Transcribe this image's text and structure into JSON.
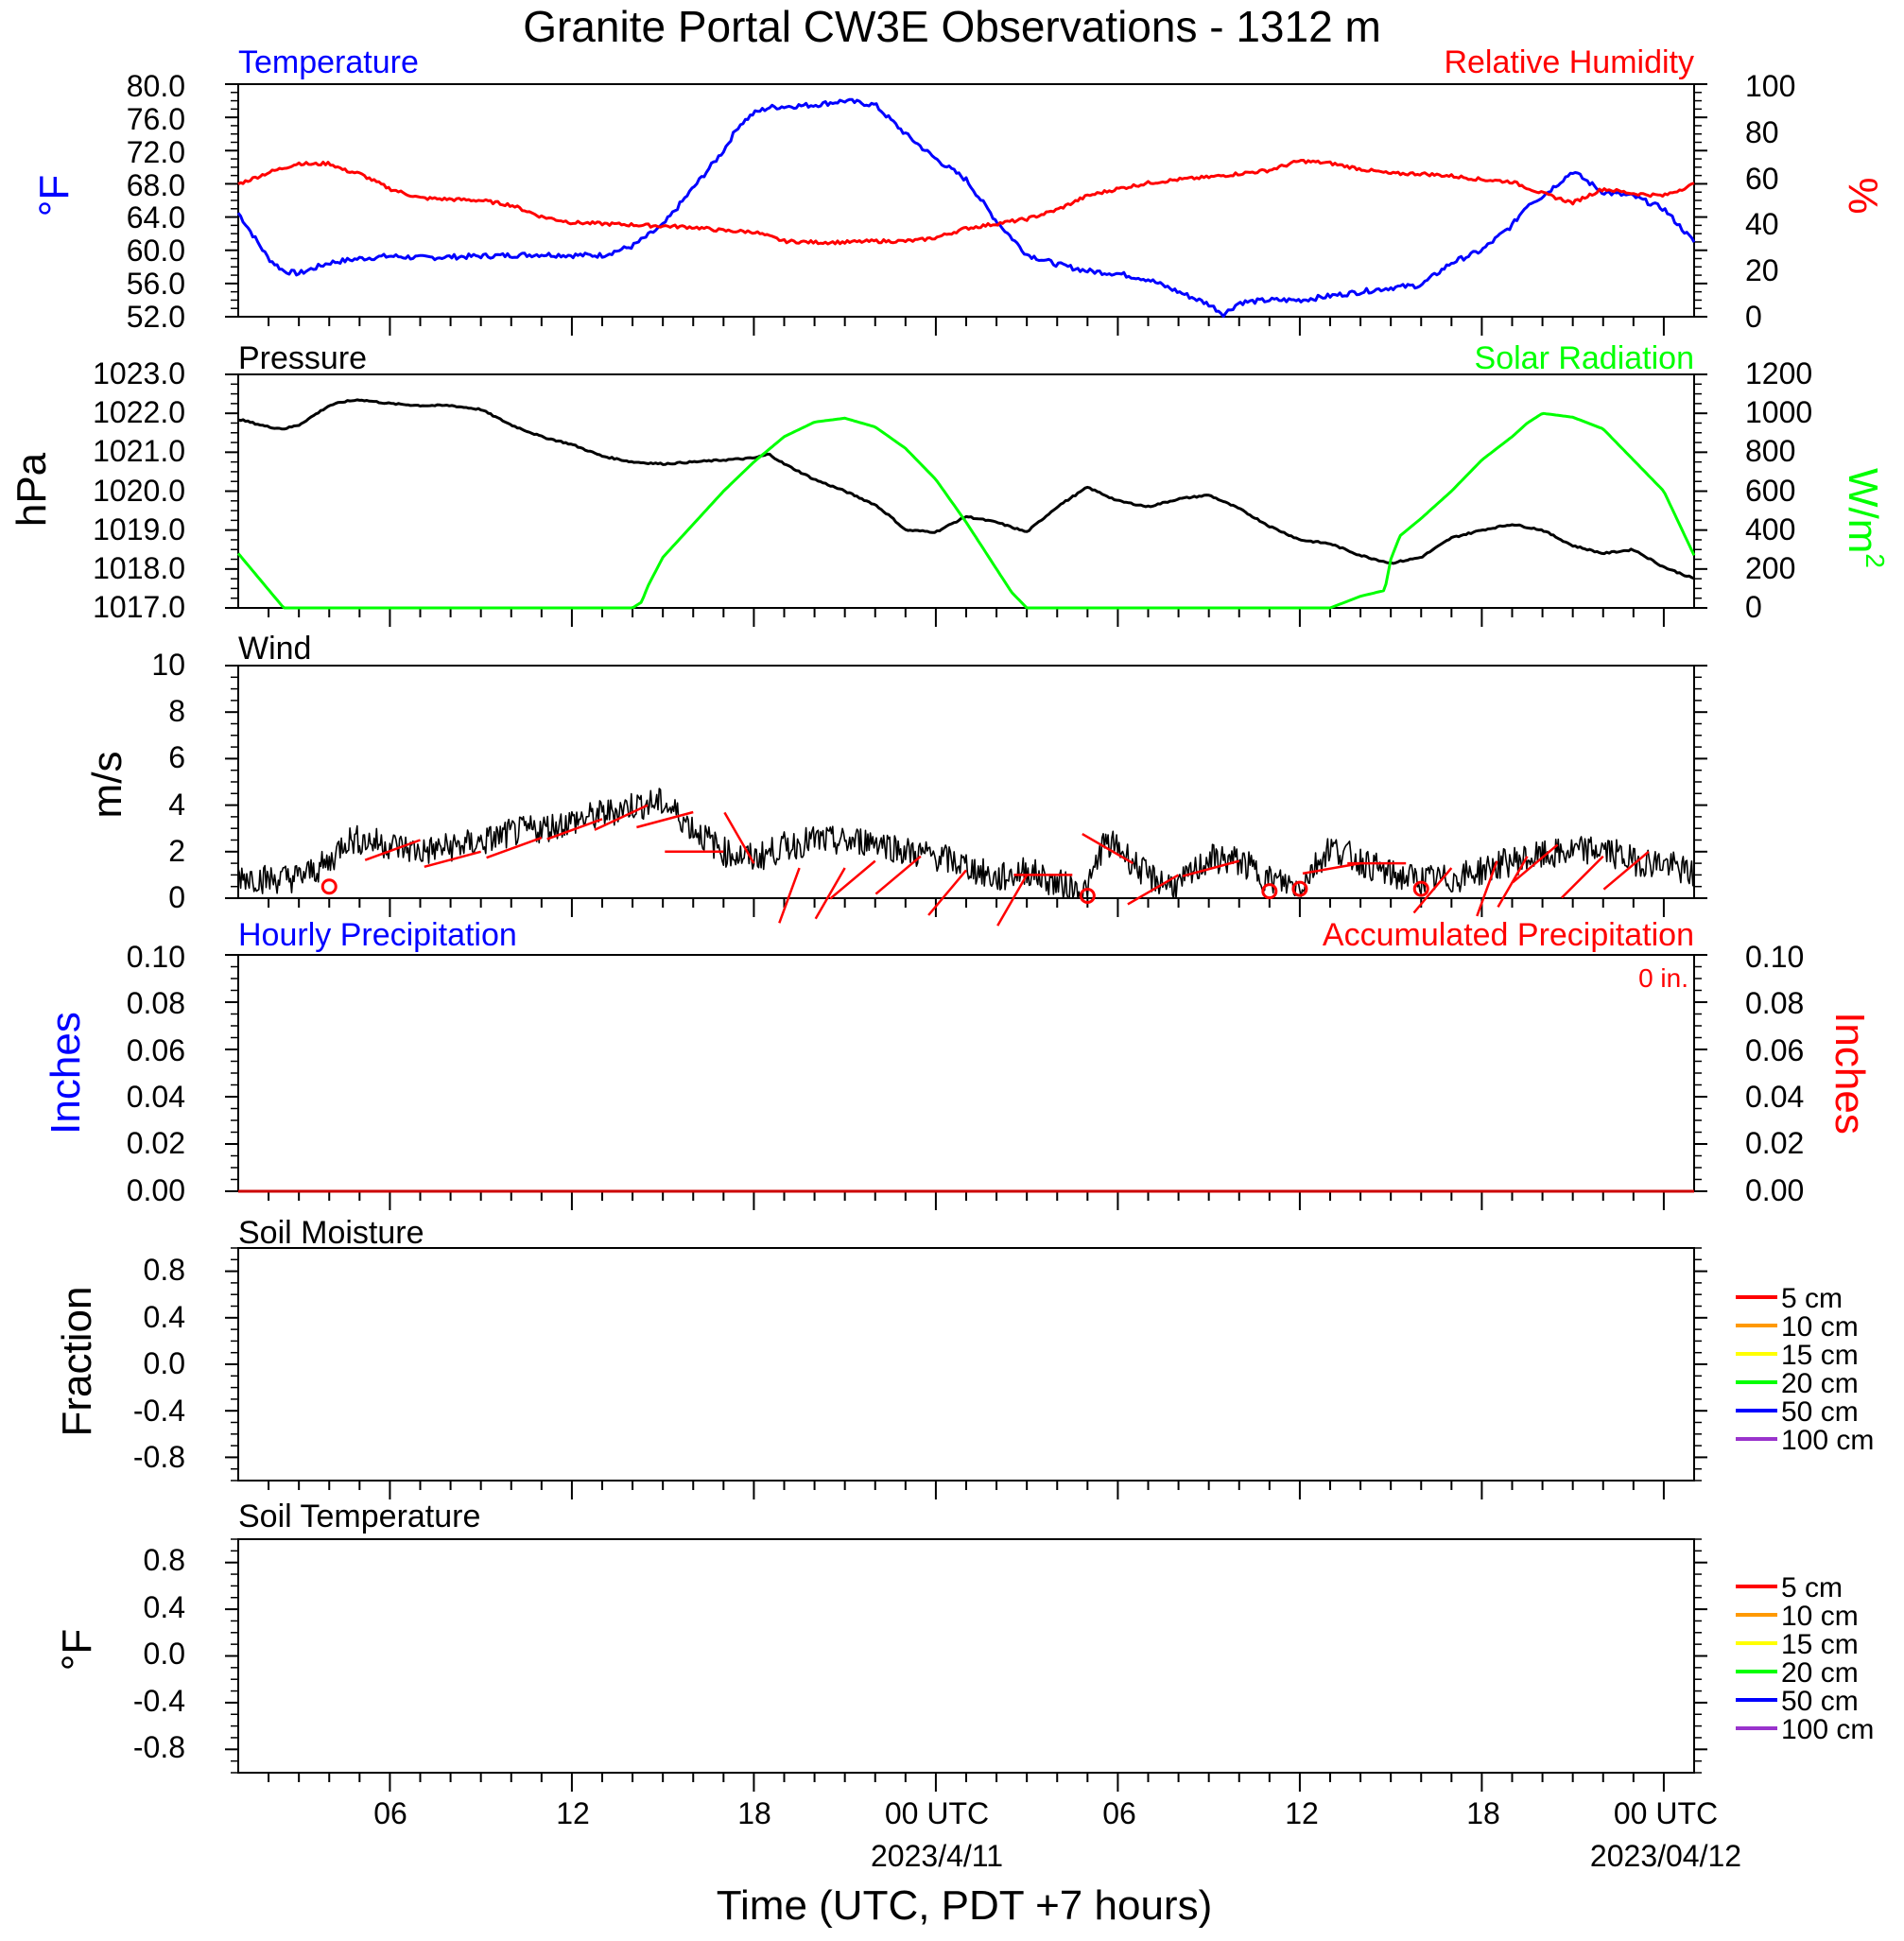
{
  "title": "Granite Portal CW3E Observations - 1312 m",
  "xlabel": "Time (UTC, PDT +7 hours)",
  "x_axis": {
    "range_hours": [
      0,
      48
    ],
    "ticks": [
      {
        "h": 5,
        "label": "06"
      },
      {
        "h": 11,
        "label": "12"
      },
      {
        "h": 17,
        "label": "18"
      },
      {
        "h": 23,
        "label": "00 UTC",
        "sublabel": "2023/4/11"
      },
      {
        "h": 29,
        "label": "06"
      },
      {
        "h": 35,
        "label": "12"
      },
      {
        "h": 41,
        "label": "18"
      },
      {
        "h": 47,
        "label": "00 UTC",
        "sublabel": "2023/04/12"
      }
    ]
  },
  "colors": {
    "temperature": "#0000ff",
    "humidity": "#ff0000",
    "pressure": "#000000",
    "solar": "#00ff00",
    "wind": "#000000",
    "barb": "#ff0000",
    "hourly_precip": "#0000ff",
    "accum_precip": "#cc0000"
  },
  "chart_data": [
    {
      "type": "line",
      "panel": "temperature-humidity",
      "left_title": "Temperature",
      "right_title": "Relative Humidity",
      "ylabel_left": "°F",
      "ylabel_right": "%",
      "ylim_left": [
        52,
        80
      ],
      "ylim_right": [
        0,
        100
      ],
      "yticks_left": [
        "80.0",
        "76.0",
        "72.0",
        "68.0",
        "64.0",
        "60.0",
        "56.0",
        "52.0"
      ],
      "yticks_right": [
        "100",
        "80",
        "60",
        "40",
        "20",
        "0"
      ],
      "series": [
        {
          "name": "Temperature",
          "axis": "left",
          "x": [
            0,
            1,
            1.5,
            2,
            3,
            4,
            5,
            6,
            7,
            8,
            9,
            10,
            11,
            12,
            13,
            14,
            15,
            16,
            16.5,
            17,
            17.5,
            18,
            19,
            20,
            21,
            22,
            22.5,
            23,
            24,
            25,
            26,
            27,
            28,
            29,
            30,
            31,
            32,
            32.5,
            33,
            34,
            35,
            36,
            37,
            38,
            39,
            40,
            41,
            42,
            42.5,
            43,
            44,
            45,
            46,
            47,
            48
          ],
          "y": [
            64.5,
            59,
            57.5,
            57.2,
            58.5,
            59,
            59.3,
            59.1,
            59.2,
            59.3,
            59.4,
            59.5,
            59.4,
            59.4,
            60.5,
            63,
            67.5,
            72,
            75,
            76.5,
            77.2,
            77.3,
            77.5,
            78,
            77.5,
            74,
            72.5,
            71,
            68.5,
            63.5,
            59.5,
            58.3,
            57.5,
            57.2,
            56.5,
            55,
            53.5,
            52.3,
            53.7,
            54,
            54,
            54.5,
            55,
            55.5,
            55.8,
            58.5,
            60,
            63,
            65.5,
            66.5,
            69.5,
            67,
            66.5,
            65,
            61
          ]
        },
        {
          "name": "Relative Humidity",
          "axis": "right",
          "x": [
            0,
            1,
            2,
            2.5,
            3,
            3.5,
            4,
            5,
            6,
            7,
            8,
            9,
            10,
            11,
            12,
            13,
            14,
            15,
            16,
            17,
            18,
            19,
            20,
            21,
            22,
            22.5,
            23,
            24,
            25,
            26,
            27,
            28,
            29,
            30,
            31,
            32,
            33,
            34,
            35,
            36,
            37,
            38,
            39,
            40,
            41,
            42,
            43,
            44,
            45,
            46,
            47,
            48
          ],
          "y": [
            57,
            62,
            66,
            65.5,
            66,
            63,
            61.5,
            55,
            51,
            50.5,
            50,
            48,
            43,
            40.5,
            40,
            39.5,
            39,
            38.5,
            37,
            36.5,
            32.5,
            32,
            32,
            32.5,
            32.5,
            33,
            34,
            38,
            40,
            42,
            46,
            52,
            55,
            57.5,
            59,
            60,
            61.5,
            63,
            67,
            66,
            63.5,
            61.5,
            61.5,
            60.5,
            59,
            58,
            53,
            49,
            55,
            53,
            52,
            57
          ]
        }
      ]
    },
    {
      "type": "line",
      "panel": "pressure-solar",
      "left_title": "Pressure",
      "right_title": "Solar Radiation",
      "ylabel_left": "hPa",
      "ylabel_right": "W/m",
      "ylabel_right_sup": "2",
      "ylim_left": [
        1017,
        1023
      ],
      "ylim_right": [
        0,
        1200
      ],
      "yticks_left": [
        "1023.0",
        "1022.0",
        "1021.0",
        "1020.0",
        "1019.0",
        "1018.0",
        "1017.0"
      ],
      "yticks_right": [
        "1200",
        "1000",
        "800",
        "600",
        "400",
        "200",
        "0"
      ],
      "series": [
        {
          "name": "Pressure",
          "axis": "left",
          "x": [
            0,
            1,
            1.5,
            2,
            3,
            3.5,
            4,
            5,
            6,
            7,
            8,
            9,
            10,
            11,
            12,
            13,
            14,
            15,
            16,
            17,
            17.5,
            18,
            19,
            20,
            21,
            21.5,
            22,
            23,
            24,
            25,
            26,
            27,
            28,
            29,
            30,
            31,
            32,
            33,
            34,
            35,
            36,
            37,
            38,
            39,
            40,
            41,
            42,
            43,
            44,
            45,
            46,
            47,
            48
          ],
          "y": [
            1021.85,
            1021.65,
            1021.6,
            1021.7,
            1022.2,
            1022.3,
            1022.35,
            1022.25,
            1022.2,
            1022.2,
            1022.1,
            1021.7,
            1021.4,
            1021.2,
            1020.9,
            1020.75,
            1020.7,
            1020.75,
            1020.8,
            1020.85,
            1020.95,
            1020.7,
            1020.3,
            1020.0,
            1019.65,
            1019.35,
            1019.0,
            1018.95,
            1019.35,
            1019.2,
            1018.95,
            1019.6,
            1020.1,
            1019.75,
            1019.6,
            1019.8,
            1019.9,
            1019.55,
            1019.1,
            1018.75,
            1018.65,
            1018.35,
            1018.15,
            1018.3,
            1018.8,
            1019.0,
            1019.15,
            1019.0,
            1018.6,
            1018.4,
            1018.5,
            1018.05,
            1017.75
          ]
        },
        {
          "name": "Solar Radiation",
          "axis": "right",
          "x": [
            0,
            1.5,
            13,
            13.3,
            13.5,
            14,
            15,
            16,
            17,
            18,
            19,
            20,
            21,
            22,
            23,
            24,
            25,
            25.5,
            26,
            36,
            37,
            37.8,
            38,
            38.3,
            39,
            40,
            41,
            42,
            42.5,
            43,
            44,
            45,
            46,
            47,
            48
          ],
          "y": [
            280,
            0,
            0,
            30,
            110,
            260,
            430,
            600,
            750,
            880,
            955,
            975,
            930,
            820,
            660,
            440,
            200,
            80,
            0,
            0,
            60,
            90,
            250,
            370,
            460,
            600,
            760,
            880,
            950,
            1000,
            980,
            920,
            760,
            600,
            270
          ]
        }
      ]
    },
    {
      "type": "line",
      "panel": "wind",
      "left_title": "Wind",
      "ylabel_left": "m/s",
      "ylim_left": [
        0,
        10
      ],
      "yticks_left": [
        "10",
        "8",
        "6",
        "4",
        "2",
        "0"
      ],
      "series": [
        {
          "name": "Wind",
          "axis": "left",
          "x": [
            0,
            1,
            2,
            3,
            3.5,
            4,
            5,
            6,
            7,
            8,
            9,
            10,
            11,
            12,
            13,
            14,
            14.5,
            15,
            16,
            17,
            18,
            19,
            20,
            21,
            22,
            23,
            24,
            25,
            26,
            27,
            28,
            28.5,
            29,
            30,
            31,
            32,
            33,
            34,
            35,
            35.5,
            36,
            37,
            38,
            39,
            40,
            41,
            42,
            43,
            44,
            45,
            46,
            47,
            48
          ],
          "y": [
            1.0,
            0.8,
            0.9,
            1.5,
            2.5,
            2.5,
            2.3,
            2.0,
            2.2,
            2.4,
            2.8,
            3.0,
            3.3,
            3.6,
            4.0,
            4.1,
            3.6,
            3.0,
            2.0,
            1.7,
            2.2,
            2.5,
            2.4,
            2.5,
            2.0,
            1.8,
            1.4,
            0.8,
            1.2,
            0.6,
            0.3,
            2.3,
            2.2,
            0.9,
            0.5,
            1.7,
            1.6,
            0.8,
            0.5,
            1.4,
            2.2,
            1.6,
            1.0,
            0.8,
            0.8,
            1.2,
            1.6,
            1.8,
            2.0,
            2.1,
            1.6,
            1.5,
            1.0
          ]
        }
      ],
      "barbs": [
        {
          "h": 3.0,
          "v": 0.5,
          "calm": true
        },
        {
          "h": 6.0,
          "v": 2.5,
          "dir": 250
        },
        {
          "h": 8.0,
          "v": 2.0,
          "dir": 255
        },
        {
          "h": 10.0,
          "v": 2.6,
          "dir": 250
        },
        {
          "h": 12.0,
          "v": 3.4,
          "dir": 250
        },
        {
          "h": 13.5,
          "v": 4.0,
          "dir": 245
        },
        {
          "h": 15.0,
          "v": 3.7,
          "dir": 255
        },
        {
          "h": 16.0,
          "v": 2.0,
          "dir": 270
        },
        {
          "h": 17.0,
          "v": 1.5,
          "dir": 330
        },
        {
          "h": 18.5,
          "v": 1.3,
          "dir": 200
        },
        {
          "h": 20.0,
          "v": 1.3,
          "dir": 210
        },
        {
          "h": 21.0,
          "v": 1.6,
          "dir": 230
        },
        {
          "h": 22.5,
          "v": 1.8,
          "dir": 230
        },
        {
          "h": 24.0,
          "v": 1.2,
          "dir": 220
        },
        {
          "h": 26.0,
          "v": 1.0,
          "dir": 210
        },
        {
          "h": 27.5,
          "v": 1.0,
          "dir": 270
        },
        {
          "h": 28.0,
          "v": 0.1,
          "calm": true
        },
        {
          "h": 29.5,
          "v": 1.5,
          "dir": 300
        },
        {
          "h": 31.0,
          "v": 1.0,
          "dir": 240
        },
        {
          "h": 33.0,
          "v": 1.6,
          "dir": 255
        },
        {
          "h": 34.0,
          "v": 0.3,
          "calm": true
        },
        {
          "h": 35.0,
          "v": 0.4,
          "calm": true
        },
        {
          "h": 37.0,
          "v": 1.5,
          "dir": 260
        },
        {
          "h": 38.5,
          "v": 1.5,
          "dir": 270
        },
        {
          "h": 39.0,
          "v": 0.4,
          "calm": true
        },
        {
          "h": 40.0,
          "v": 1.3,
          "dir": 220
        },
        {
          "h": 41.5,
          "v": 1.6,
          "dir": 200
        },
        {
          "h": 42.5,
          "v": 1.8,
          "dir": 210
        },
        {
          "h": 43.5,
          "v": 2.3,
          "dir": 230
        },
        {
          "h": 45.0,
          "v": 1.8,
          "dir": 225
        },
        {
          "h": 46.5,
          "v": 2.0,
          "dir": 230
        }
      ]
    },
    {
      "type": "line",
      "panel": "precipitation",
      "left_title": "Hourly Precipitation",
      "right_title": "Accumulated Precipitation",
      "accumulated_total": "0 in.",
      "ylabel_left": "Inches",
      "ylabel_right": "Inches",
      "ylim_left": [
        0,
        0.1
      ],
      "ylim_right": [
        0,
        0.1
      ],
      "yticks_left": [
        "0.10",
        "0.08",
        "0.06",
        "0.04",
        "0.02",
        "0.00"
      ],
      "yticks_right": [
        "0.10",
        "0.08",
        "0.06",
        "0.04",
        "0.02",
        "0.00"
      ],
      "series": [
        {
          "name": "Hourly Precipitation",
          "axis": "left",
          "x": [
            0,
            48
          ],
          "y": [
            0,
            0
          ]
        },
        {
          "name": "Accumulated Precipitation",
          "axis": "right",
          "x": [
            0,
            48
          ],
          "y": [
            0,
            0
          ]
        }
      ]
    },
    {
      "type": "line",
      "panel": "soil-moisture",
      "left_title": "Soil Moisture",
      "ylabel_left": "Fraction",
      "ylim_left": [
        -1,
        1
      ],
      "yticks_left": [
        "0.8",
        "0.4",
        "0.0",
        "-0.4",
        "-0.8"
      ],
      "legend": [
        {
          "label": "5 cm",
          "color": "#ff0000"
        },
        {
          "label": "10 cm",
          "color": "#ff9900"
        },
        {
          "label": "15 cm",
          "color": "#ffff00"
        },
        {
          "label": "20 cm",
          "color": "#00ff00"
        },
        {
          "label": "50 cm",
          "color": "#0000ff"
        },
        {
          "label": "100 cm",
          "color": "#9933cc"
        }
      ],
      "series": []
    },
    {
      "type": "line",
      "panel": "soil-temperature",
      "left_title": "Soil Temperature",
      "ylabel_left": "°F",
      "ylim_left": [
        -1,
        1
      ],
      "yticks_left": [
        "0.8",
        "0.4",
        "0.0",
        "-0.4",
        "-0.8"
      ],
      "legend": [
        {
          "label": "5 cm",
          "color": "#ff0000"
        },
        {
          "label": "10 cm",
          "color": "#ff9900"
        },
        {
          "label": "15 cm",
          "color": "#ffff00"
        },
        {
          "label": "20 cm",
          "color": "#00ff00"
        },
        {
          "label": "50 cm",
          "color": "#0000ff"
        },
        {
          "label": "100 cm",
          "color": "#9933cc"
        }
      ],
      "series": []
    }
  ]
}
